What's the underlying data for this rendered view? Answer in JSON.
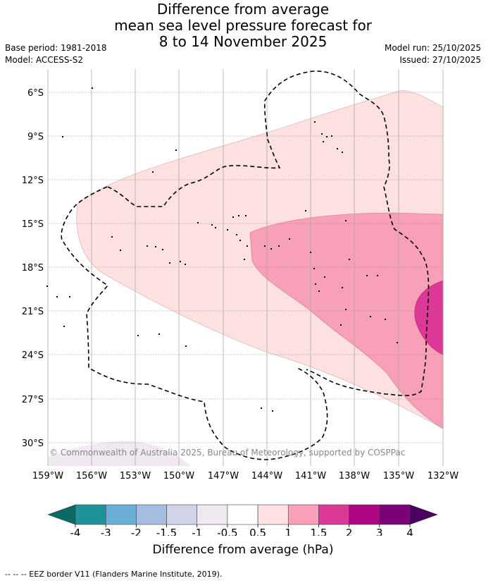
{
  "title": {
    "line1": "Difference from average",
    "line2": "mean sea level pressure forecast for",
    "line3": "8 to 14 November 2025"
  },
  "meta": {
    "base_period": "Base period: 1981-2018",
    "model": "Model: ACCESS-S2",
    "model_run": "Model run: 25/10/2025",
    "issued": "Issued: 27/10/2025"
  },
  "map": {
    "lat_labels": [
      "6°S",
      "9°S",
      "12°S",
      "15°S",
      "18°S",
      "21°S",
      "24°S",
      "27°S",
      "30°S"
    ],
    "lon_labels": [
      "159°W",
      "156°W",
      "153°W",
      "150°W",
      "147°W",
      "144°W",
      "141°W",
      "138°W",
      "135°W",
      "132°W"
    ],
    "copyright": "© Commonwealth of Australia 2025, Bureau of Meteorology, supported by COSPPac"
  },
  "colorbar": {
    "ticks": [
      "-4",
      "-3",
      "-2",
      "-1.5",
      "-1",
      "-0.5",
      "0.5",
      "1",
      "1.5",
      "2",
      "3",
      "4"
    ],
    "colors": [
      "#1e9399",
      "#6aaed6",
      "#a5bde0",
      "#d1d3e8",
      "#f1e9f1",
      "#ffffff",
      "#fde0e0",
      "#f8a0b8",
      "#dc3898",
      "#b00580",
      "#7a0177"
    ],
    "low_color": "#0b6b64",
    "high_color": "#4a015f",
    "label": "Difference from average (hPa)"
  },
  "footer": "-- -- -- EEZ border V11 (Flanders Marine Institute, 2019)."
}
